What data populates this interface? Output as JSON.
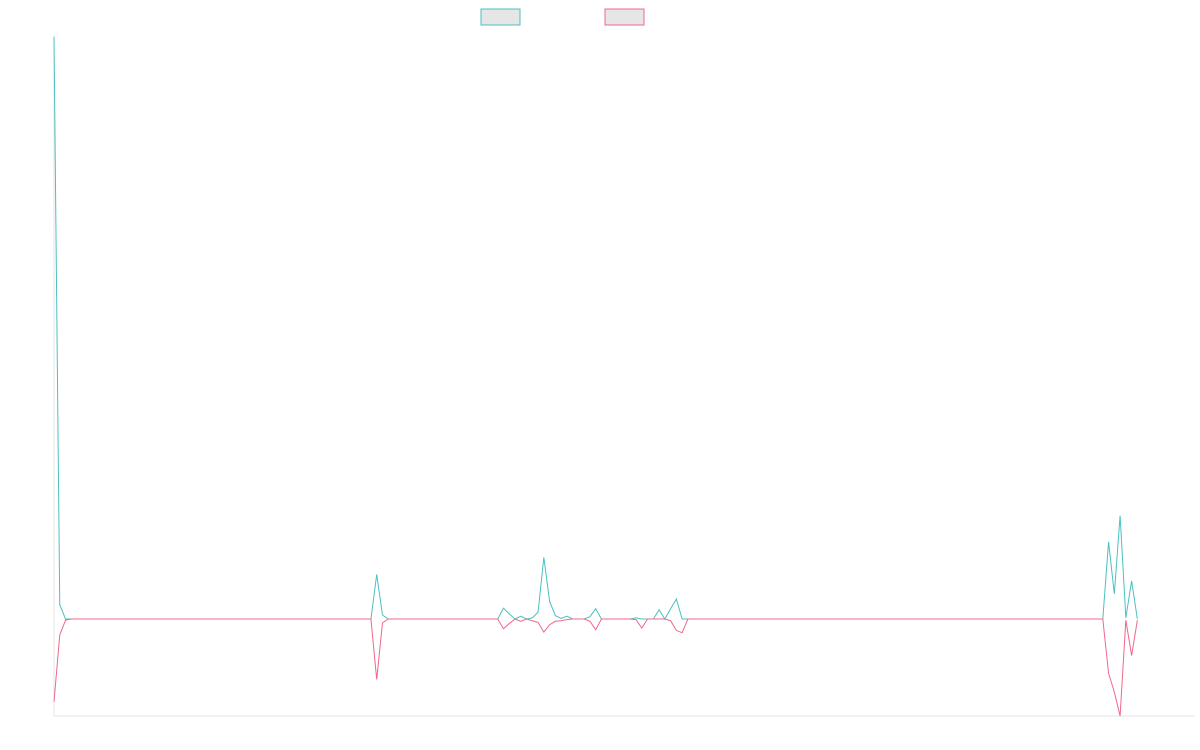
{
  "chart_data": {
    "type": "line",
    "title": "",
    "xlabel": "",
    "ylabel": "",
    "x_range": [
      0,
      198
    ],
    "ylim": [
      -17,
      102
    ],
    "grid": false,
    "legend": "top-center",
    "series": [
      {
        "color": "#4bc0c0",
        "values": [
          102,
          2.5,
          0,
          0,
          0,
          0,
          0,
          0,
          0,
          0,
          0,
          0,
          0,
          0,
          0,
          0,
          0,
          0,
          0,
          0,
          0,
          0,
          0,
          0,
          0,
          0,
          0,
          0,
          0,
          0,
          0,
          0,
          0,
          0,
          0,
          0,
          0,
          0,
          0,
          0,
          0,
          0,
          0,
          0,
          0,
          0,
          0,
          0,
          0,
          0,
          0,
          0,
          0,
          0,
          0,
          0,
          7.8,
          0.7,
          0,
          0,
          0,
          0,
          0,
          0,
          0,
          0,
          0,
          0,
          0,
          0,
          0,
          0,
          0,
          0,
          0,
          0,
          0,
          0,
          1.9,
          0.9,
          0,
          0.5,
          0,
          0.2,
          1.2,
          10.8,
          3.1,
          0.6,
          0.1,
          0.5,
          0,
          0,
          0,
          0.4,
          1.8,
          0,
          0,
          0,
          0,
          0,
          0,
          0.2,
          0,
          0,
          0,
          1.6,
          0,
          1.8,
          3.5,
          0,
          0,
          0,
          0,
          0,
          0,
          0,
          0,
          0,
          0,
          0,
          0,
          0,
          0,
          0,
          0,
          0,
          0,
          0,
          0,
          0,
          0,
          0,
          0,
          0,
          0,
          0,
          0,
          0,
          0,
          0,
          0,
          0,
          0,
          0,
          0,
          0,
          0,
          0,
          0,
          0,
          0,
          0,
          0,
          0,
          0,
          0,
          0,
          0,
          0,
          0,
          0,
          0,
          0,
          0,
          0,
          0,
          0,
          0,
          0,
          0,
          0,
          0,
          0,
          0,
          0,
          0,
          0,
          0,
          0,
          0,
          0,
          0,
          0,
          13.5,
          4.4,
          18.1,
          0.2,
          6.7,
          0
        ]
      },
      {
        "color": "#f06789",
        "values": [
          -14.5,
          -2.8,
          -0.2,
          0,
          0,
          0,
          0,
          0,
          0,
          0,
          0,
          0,
          0,
          0,
          0,
          0,
          0,
          0,
          0,
          0,
          0,
          0,
          0,
          0,
          0,
          0,
          0,
          0,
          0,
          0,
          0,
          0,
          0,
          0,
          0,
          0,
          0,
          0,
          0,
          0,
          0,
          0,
          0,
          0,
          0,
          0,
          0,
          0,
          0,
          0,
          0,
          0,
          0,
          0,
          0,
          0,
          -10.6,
          -0.7,
          0,
          0,
          0,
          0,
          0,
          0,
          0,
          0,
          0,
          0,
          0,
          0,
          0,
          0,
          0,
          0,
          0,
          0,
          0,
          0,
          -1.7,
          -0.8,
          0,
          -0.4,
          0,
          -0.3,
          -0.6,
          -2.3,
          -1.0,
          -0.4,
          -0.3,
          -0.1,
          0,
          0,
          0,
          -0.4,
          -1.9,
          0,
          0,
          0,
          0,
          0,
          0,
          -0.1,
          -1.6,
          0,
          0,
          0,
          0,
          -0.3,
          -2.0,
          -2.4,
          0,
          0,
          0,
          0,
          0,
          0,
          0,
          0,
          0,
          0,
          0,
          0,
          0,
          0,
          0,
          0,
          0,
          0,
          0,
          0,
          0,
          0,
          0,
          0,
          0,
          0,
          0,
          0,
          0,
          0,
          0,
          0,
          0,
          0,
          0,
          0,
          0,
          0,
          0,
          0,
          0,
          0,
          0,
          0,
          0,
          0,
          0,
          0,
          0,
          0,
          0,
          0,
          0,
          0,
          0,
          0,
          0,
          0,
          0,
          0,
          0,
          0,
          0,
          0,
          0,
          0,
          0,
          0,
          0,
          0,
          0,
          0,
          0,
          -9.5,
          -12.8,
          -17.0,
          -0.2,
          -6.4,
          -0.2
        ]
      }
    ]
  }
}
